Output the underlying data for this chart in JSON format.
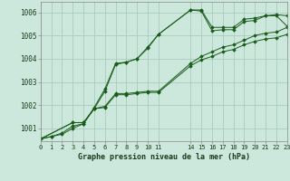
{
  "title": "Graphe pression niveau de la mer (hPa)",
  "bg_color": "#cce8dd",
  "plot_bg_color": "#cce8dd",
  "line_color": "#1a5c1a",
  "grid_color": "#aaccbb",
  "xlim": [
    0,
    23
  ],
  "ylim": [
    1000.45,
    1006.45
  ],
  "yticks": [
    1001,
    1002,
    1003,
    1004,
    1005,
    1006
  ],
  "xticks": [
    0,
    1,
    2,
    3,
    4,
    5,
    6,
    7,
    8,
    9,
    10,
    11,
    14,
    15,
    16,
    17,
    18,
    19,
    20,
    21,
    22,
    23
  ],
  "xtick_labels": [
    "0",
    "1",
    "2",
    "3",
    "4",
    "5",
    "6",
    "7",
    "8",
    "9",
    "10",
    "11",
    "14",
    "15",
    "16",
    "17",
    "18",
    "19",
    "20",
    "21",
    "22",
    "23"
  ],
  "series": [
    {
      "x": [
        0,
        1,
        2,
        3,
        4,
        5,
        6,
        7,
        8,
        9,
        10,
        11,
        14,
        15,
        16,
        17,
        18,
        19,
        20,
        21,
        22,
        23
      ],
      "y": [
        1000.55,
        1000.65,
        1000.75,
        1001.0,
        1001.2,
        1001.9,
        1002.7,
        1003.8,
        1003.85,
        1004.0,
        1004.5,
        1005.05,
        1006.1,
        1006.05,
        1005.2,
        1005.25,
        1005.25,
        1005.6,
        1005.65,
        1005.85,
        1005.85,
        1005.4
      ]
    },
    {
      "x": [
        0,
        1,
        2,
        3,
        4,
        5,
        6,
        7,
        8,
        9,
        10,
        11,
        14,
        15,
        16,
        17,
        18,
        19,
        20,
        21,
        22,
        23
      ],
      "y": [
        1000.55,
        1000.65,
        1000.8,
        1001.1,
        1001.2,
        1001.85,
        1002.6,
        1003.75,
        1003.85,
        1004.0,
        1004.45,
        1005.05,
        1006.1,
        1006.1,
        1005.35,
        1005.35,
        1005.35,
        1005.7,
        1005.75,
        1005.85,
        1005.9,
        1005.85
      ]
    },
    {
      "x": [
        0,
        3,
        4,
        5,
        6,
        7,
        8,
        9,
        10,
        11,
        14,
        15,
        16,
        17,
        18,
        19,
        20,
        21,
        22,
        23
      ],
      "y": [
        1000.55,
        1001.25,
        1001.25,
        1001.85,
        1001.95,
        1002.5,
        1002.5,
        1002.55,
        1002.6,
        1002.6,
        1003.8,
        1004.1,
        1004.3,
        1004.5,
        1004.6,
        1004.8,
        1005.0,
        1005.1,
        1005.15,
        1005.35
      ]
    },
    {
      "x": [
        0,
        3,
        4,
        5,
        6,
        7,
        8,
        9,
        10,
        11,
        14,
        15,
        16,
        17,
        18,
        19,
        20,
        21,
        22,
        23
      ],
      "y": [
        1000.55,
        1001.25,
        1001.25,
        1001.85,
        1001.9,
        1002.45,
        1002.45,
        1002.5,
        1002.55,
        1002.55,
        1003.7,
        1003.95,
        1004.1,
        1004.3,
        1004.4,
        1004.6,
        1004.75,
        1004.85,
        1004.9,
        1005.05
      ]
    }
  ]
}
